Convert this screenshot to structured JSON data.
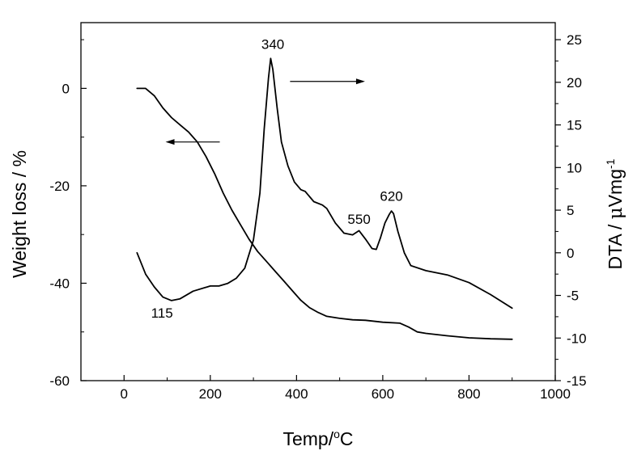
{
  "chart_data": {
    "type": "line",
    "x_axis": {
      "label_main": "Temp/",
      "label_sup": "o",
      "label_unit": "C",
      "range": [
        -100,
        1000
      ],
      "ticks": [
        0,
        200,
        400,
        600,
        800,
        1000
      ],
      "tick_labels": [
        "0",
        "200",
        "400",
        "600",
        "800",
        "1000"
      ]
    },
    "y_axis_left": {
      "label": "Weight loss / %",
      "range": [
        -60,
        13.5
      ],
      "ticks": [
        -60,
        -40,
        -20,
        0
      ],
      "tick_labels": [
        "-60",
        "-40",
        "-20",
        "0"
      ]
    },
    "y_axis_right": {
      "label_main": "DTA / ",
      "label_mu": "μ",
      "label_unit": "Vmg",
      "label_sup": "-1",
      "range": [
        -15,
        27
      ],
      "ticks": [
        -15,
        -10,
        -5,
        0,
        5,
        10,
        15,
        20,
        25
      ],
      "tick_labels": [
        "-15",
        "-10",
        "-5",
        "0",
        "5",
        "10",
        "15",
        "20",
        "25"
      ]
    },
    "grid": false,
    "series": [
      {
        "axis": "left",
        "x": [
          30,
          50,
          70,
          90,
          110,
          130,
          150,
          170,
          190,
          210,
          230,
          250,
          270,
          290,
          310,
          330,
          350,
          370,
          390,
          410,
          430,
          450,
          470,
          500,
          530,
          560,
          600,
          640,
          660,
          680,
          700,
          750,
          800,
          850,
          900
        ],
        "y": [
          0,
          0,
          -1.5,
          -4,
          -6,
          -7.5,
          -9,
          -11,
          -14,
          -17.5,
          -21.5,
          -25,
          -28,
          -31,
          -33.5,
          -35.5,
          -37.5,
          -39.5,
          -41.5,
          -43.5,
          -45,
          -46,
          -46.8,
          -47.2,
          -47.5,
          -47.6,
          -48,
          -48.2,
          -49,
          -50,
          -50.3,
          -50.8,
          -51.2,
          -51.4,
          -51.5
        ]
      },
      {
        "axis": "right",
        "x": [
          30,
          50,
          70,
          90,
          110,
          130,
          160,
          200,
          220,
          240,
          260,
          280,
          300,
          315,
          325,
          335,
          340,
          345,
          355,
          365,
          380,
          395,
          410,
          420,
          440,
          460,
          470,
          490,
          510,
          530,
          545,
          560,
          575,
          585,
          595,
          605,
          615,
          620,
          625,
          635,
          650,
          665,
          700,
          750,
          800,
          850,
          900
        ],
        "y": [
          0,
          -2.5,
          -4,
          -5.2,
          -5.6,
          -5.4,
          -4.5,
          -3.9,
          -3.9,
          -3.6,
          -3,
          -1.8,
          1.5,
          7,
          14.5,
          20.5,
          22.8,
          21.5,
          17,
          13,
          10.2,
          8.3,
          7.4,
          7.2,
          6,
          5.6,
          5.2,
          3.5,
          2.3,
          2.1,
          2.6,
          1.6,
          0.5,
          0.4,
          1.8,
          3.5,
          4.5,
          4.9,
          4.6,
          2.5,
          0,
          -1.5,
          -2.1,
          -2.6,
          -3.5,
          -4.9,
          -6.5
        ]
      }
    ],
    "annotations": [
      {
        "text": "340",
        "x": 345,
        "y_right": 23.9
      },
      {
        "text": "550",
        "x": 545,
        "y_right": 3.4
      },
      {
        "text": "620",
        "x": 620,
        "y_right": 6.1
      },
      {
        "text": "115",
        "x": 88,
        "y_right": -7.6
      }
    ],
    "arrows": [
      {
        "direction": "left",
        "axis": "left",
        "y": -11,
        "x_from": 222,
        "x_to": 100
      },
      {
        "direction": "right",
        "axis": "right",
        "y": 20.1,
        "x_from": 385,
        "x_to": 555
      }
    ]
  }
}
